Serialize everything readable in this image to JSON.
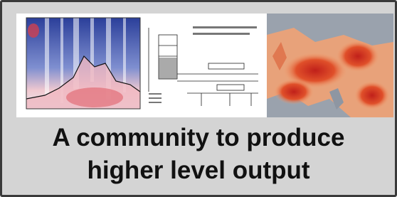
{
  "caption": {
    "lines": [
      "A community to produce",
      "higher level output"
    ]
  }
}
